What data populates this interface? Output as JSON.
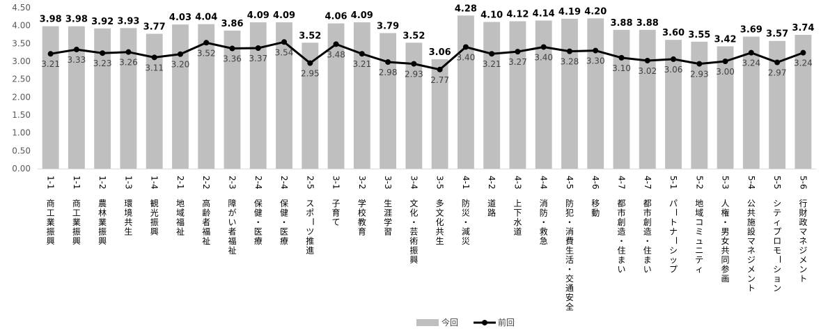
{
  "chart_data": {
    "type": "bar",
    "categories": [
      [
        "1-1",
        "商工業振興"
      ],
      [
        "1-1",
        "商工業振興"
      ],
      [
        "1-2",
        "農林業振興"
      ],
      [
        "1-3",
        "環境共生"
      ],
      [
        "1-4",
        "観光振興"
      ],
      [
        "2-1",
        "地域福祉"
      ],
      [
        "2-2",
        "高齢者福祉"
      ],
      [
        "2-3",
        "障がい者福祉"
      ],
      [
        "2-4",
        "保健・医療"
      ],
      [
        "2-4",
        "保健・医療"
      ],
      [
        "2-5",
        "スポーツ推進"
      ],
      [
        "3-1",
        "子育て"
      ],
      [
        "3-2",
        "学校教育"
      ],
      [
        "3-3",
        "生涯学習"
      ],
      [
        "3-4",
        "文化・芸術振興"
      ],
      [
        "3-5",
        "多文化共生"
      ],
      [
        "4-1",
        "防災・減災"
      ],
      [
        "4-2",
        "道路"
      ],
      [
        "4-3",
        "上下水道"
      ],
      [
        "4-4",
        "消防・救急"
      ],
      [
        "4-5",
        "防犯・消費生活・交通安全"
      ],
      [
        "4-6",
        "移動"
      ],
      [
        "4-7",
        "都市創造・住まい"
      ],
      [
        "4-7",
        "都市創造・住まい"
      ],
      [
        "5-1",
        "パートナーシップ"
      ],
      [
        "5-2",
        "地域コミュニティ"
      ],
      [
        "5-3",
        "人権・男女共同参画"
      ],
      [
        "5-4",
        "公共施設マネジメント"
      ],
      [
        "5-5",
        "シティプロモーション"
      ],
      [
        "5-6",
        "行財政マネジメント"
      ]
    ],
    "series": [
      {
        "name": "今回",
        "kind": "bar",
        "color": "#bfbfbf",
        "values": [
          3.98,
          3.98,
          3.92,
          3.93,
          3.77,
          4.03,
          4.04,
          3.86,
          4.09,
          4.09,
          3.52,
          4.06,
          4.09,
          3.79,
          3.52,
          3.06,
          4.28,
          4.1,
          4.12,
          4.14,
          4.19,
          4.2,
          3.88,
          3.88,
          3.6,
          3.55,
          3.42,
          3.69,
          3.57,
          3.74
        ]
      },
      {
        "name": "前回",
        "kind": "line",
        "color": "#000000",
        "values": [
          3.21,
          3.33,
          3.23,
          3.26,
          3.11,
          3.2,
          3.52,
          3.36,
          3.37,
          3.54,
          2.95,
          3.48,
          3.21,
          2.98,
          2.93,
          2.77,
          3.4,
          3.21,
          3.27,
          3.4,
          3.28,
          3.3,
          3.1,
          3.02,
          3.06,
          2.93,
          3.0,
          3.24,
          2.97,
          3.24
        ]
      }
    ],
    "yticks": [
      "0.00",
      "0.50",
      "1.00",
      "1.50",
      "2.00",
      "2.50",
      "3.00",
      "3.50",
      "4.00",
      "4.50"
    ],
    "ylim": [
      0,
      4.5
    ],
    "grid": false,
    "legend": "bottom-center",
    "title": "",
    "xlabel": "",
    "ylabel": ""
  }
}
